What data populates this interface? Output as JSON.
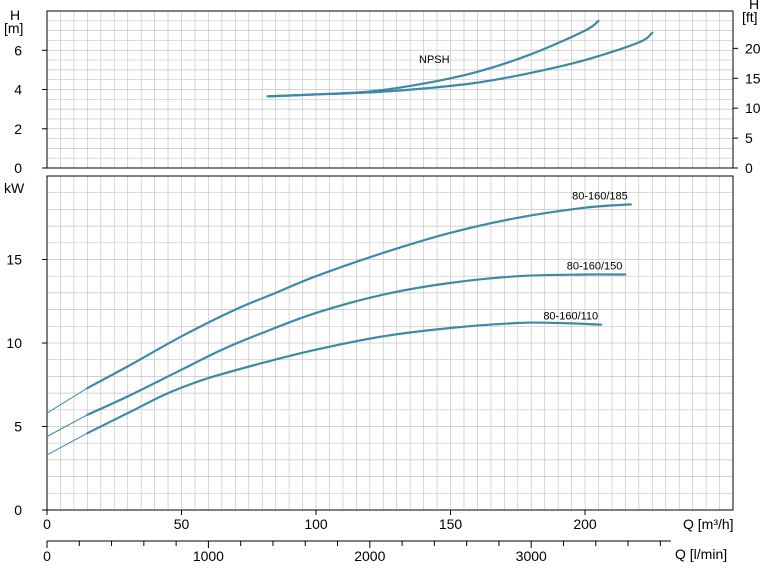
{
  "chart_data": [
    {
      "type": "line",
      "panel": "npsh",
      "left_axis_label": "H",
      "left_axis_unit": "[m]",
      "right_axis_label": "H",
      "right_axis_unit": "[ft]",
      "y_ticks_left": [
        "0",
        "2",
        "4",
        "6"
      ],
      "y_ticks_right": [
        "0",
        "5",
        "10",
        "15",
        "20"
      ],
      "ylim": [
        0,
        8
      ],
      "curve_label": "NPSH",
      "grid": true,
      "series": [
        {
          "x": [
            82,
            100,
            120,
            140,
            160,
            180,
            200,
            205
          ],
          "y": [
            3.65,
            3.75,
            3.9,
            4.3,
            4.9,
            5.8,
            7.0,
            7.5
          ]
        },
        {
          "x": [
            82,
            100,
            120,
            140,
            160,
            180,
            200,
            220,
            225
          ],
          "y": [
            3.65,
            3.75,
            3.85,
            4.05,
            4.35,
            4.85,
            5.5,
            6.4,
            6.9
          ]
        }
      ]
    },
    {
      "type": "line",
      "panel": "power",
      "ylabel": "kW",
      "y_ticks": [
        "0",
        "5",
        "10",
        "15"
      ],
      "ylim": [
        0,
        20
      ],
      "grid": true,
      "series": [
        {
          "name": "80-160/185",
          "x": [
            0,
            15,
            30,
            50,
            70,
            85,
            100,
            125,
            150,
            175,
            200,
            217
          ],
          "y": [
            5.8,
            7.3,
            8.6,
            10.4,
            12.0,
            13.0,
            14.0,
            15.4,
            16.6,
            17.5,
            18.1,
            18.3
          ]
        },
        {
          "name": "80-160/150",
          "x": [
            0,
            15,
            30,
            50,
            65,
            80,
            100,
            125,
            150,
            175,
            200,
            215
          ],
          "y": [
            4.4,
            5.7,
            6.8,
            8.4,
            9.6,
            10.6,
            11.8,
            12.9,
            13.6,
            14.0,
            14.1,
            14.1
          ]
        },
        {
          "name": "80-160/110",
          "x": [
            0,
            15,
            30,
            45,
            60,
            80,
            100,
            125,
            150,
            175,
            190,
            206
          ],
          "y": [
            3.3,
            4.6,
            5.8,
            7.0,
            7.9,
            8.8,
            9.6,
            10.4,
            10.9,
            11.2,
            11.2,
            11.1
          ]
        }
      ]
    }
  ],
  "x_axis_main": {
    "ticks": [
      "0",
      "50",
      "100",
      "150",
      "200"
    ],
    "label": "Q [m³/h]",
    "xlim": [
      0,
      255
    ]
  },
  "x_axis_secondary": {
    "ticks": [
      "0",
      "1000",
      "2000",
      "3000"
    ],
    "label": "Q [l/min]"
  }
}
